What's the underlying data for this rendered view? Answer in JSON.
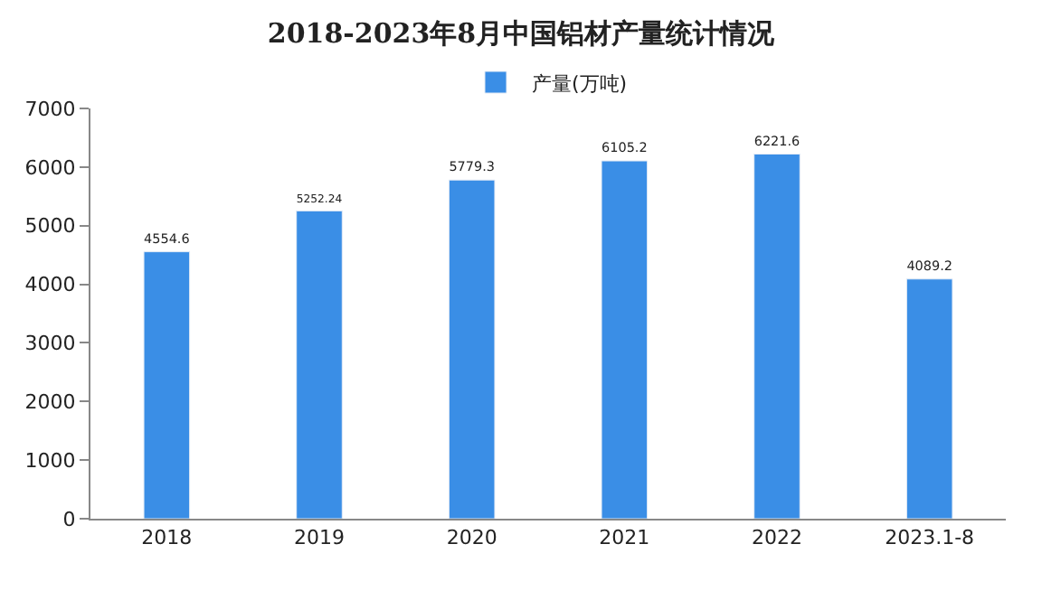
{
  "chart_data": {
    "type": "bar",
    "title": "2018-2023年8月中国铝材产量统计情况",
    "categories": [
      "2018",
      "2019",
      "2020",
      "2021",
      "2022",
      "2023.1-8"
    ],
    "series": [
      {
        "name": "产量(万吨)",
        "color": "#3a8ee6",
        "values": [
          4554.6,
          5252.24,
          5779.3,
          6105.2,
          6221.6,
          4089.2
        ]
      }
    ],
    "ylim": [
      0,
      7000
    ],
    "yticks": [
      0,
      1000,
      2000,
      3000,
      4000,
      5000,
      6000,
      7000
    ],
    "data_labels": true,
    "legend": "top"
  }
}
